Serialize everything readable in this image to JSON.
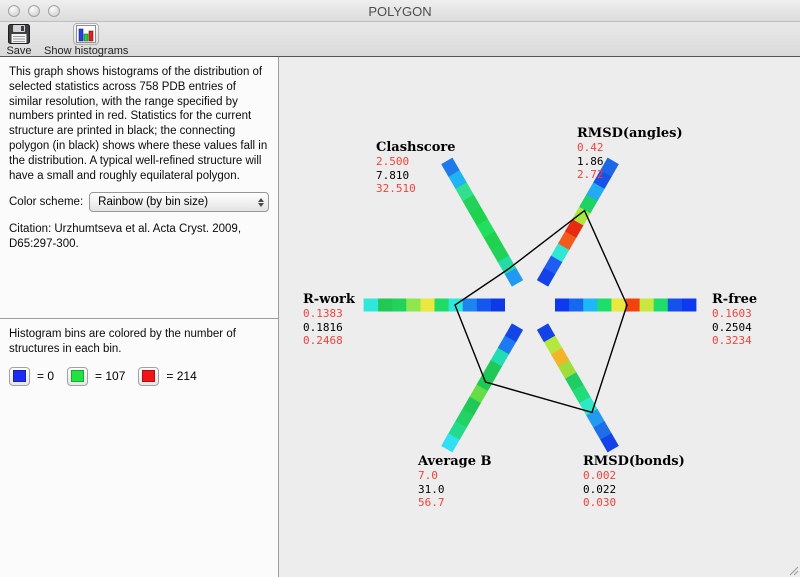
{
  "window": {
    "title": "POLYGON"
  },
  "toolbar": {
    "save_label": "Save",
    "show_histograms_label": "Show histograms",
    "save_icon": "floppy-disk-icon",
    "show_histograms_icon": "histogram-icon"
  },
  "info_panel": {
    "description": "This graph shows histograms of the distribution of selected statistics across 758 PDB entries of similar resolution, with the range specified by numbers printed in red.  Statistics for the current structure are printed in black; the connecting polygon (in black) shows where these values fall in the distribution. A typical well-refined structure will have a small and roughly equilateral polygon.",
    "color_scheme_label": "Color scheme:",
    "color_scheme_value": "Rainbow (by bin size)",
    "citation": "Citation: Urzhumtseva et al. Acta Cryst. 2009, D65:297-300."
  },
  "legend_panel": {
    "description": "Histogram bins are colored by the number of structures in each bin.",
    "bins": [
      {
        "color": "#1c2cf0",
        "label": "= 0"
      },
      {
        "color": "#21e241",
        "label": "= 107"
      },
      {
        "color": "#ee1616",
        "label": "= 214"
      }
    ]
  },
  "colors": {
    "range_text": "#f5423c",
    "current_text": "#000000",
    "polygon_stroke": "#000000",
    "chart_background": "#ededed"
  },
  "chart_data": {
    "type": "radar-histogram",
    "n_axes": 6,
    "bins_per_axis": 10,
    "legend": {
      "bin_count_min": 0,
      "bin_count_mid": 107,
      "bin_count_max": 214
    },
    "axes": [
      {
        "name": "R-free",
        "angle_deg": 0,
        "low": "0.1603",
        "current": "0.2504",
        "high": "0.3234",
        "polygon_radius": 97,
        "bin_colors": [
          "#0d3af0",
          "#1668f0",
          "#1cb8fa",
          "#1ede6a",
          "#e8e83e",
          "#f2430d",
          "#c8e83e",
          "#1ede6a",
          "#1452f0",
          "#0d3af0"
        ]
      },
      {
        "name": "RMSD(angles)",
        "angle_deg": 60,
        "low": "0.42",
        "current": "1.86",
        "high": "2.72",
        "polygon_radius": 109,
        "bin_colors": [
          "#1242e8",
          "#1e5cf2",
          "#2ee8d4",
          "#f25a1e",
          "#e82a12",
          "#aae83e",
          "#1ed266",
          "#22aaf2",
          "#1452e8",
          "#1e66e8"
        ]
      },
      {
        "name": "Clashscore",
        "angle_deg": 120,
        "low": "2.500",
        "current": "7.810",
        "high": "32.510",
        "polygon_radius": 42,
        "bin_colors": [
          "#2198f2",
          "#24dcaa",
          "#22d258",
          "#1ed24e",
          "#22e05e",
          "#1ed24e",
          "#22d25a",
          "#30e08c",
          "#22b4f2",
          "#1e7ae8"
        ]
      },
      {
        "name": "R-work",
        "angle_deg": 180,
        "low": "0.1383",
        "current": "0.1816",
        "high": "0.2468",
        "polygon_radius": 75,
        "bin_colors": [
          "#0d3ae8",
          "#1456f2",
          "#1e84f2",
          "#2ee8dc",
          "#1edc64",
          "#e8e83e",
          "#8ce84c",
          "#22d25a",
          "#20c854",
          "#2ee8dc"
        ]
      },
      {
        "name": "Average B",
        "angle_deg": 240,
        "low": "7.0",
        "current": "31.0",
        "high": "56.7",
        "polygon_radius": 89,
        "bin_colors": [
          "#1246e8",
          "#1e7af2",
          "#22dcb4",
          "#20c858",
          "#1ec854",
          "#66dc46",
          "#20c858",
          "#22d264",
          "#22dc8c",
          "#2ee0f2"
        ]
      },
      {
        "name": "RMSD(bonds)",
        "angle_deg": 300,
        "low": "0.002",
        "current": "0.022",
        "high": "0.030",
        "polygon_radius": 124,
        "bin_colors": [
          "#1242e8",
          "#b4e83e",
          "#f2b428",
          "#a0dc3c",
          "#20cd64",
          "#22dc78",
          "#2ee8c8",
          "#219af2",
          "#1e6ee8",
          "#1242e8"
        ]
      }
    ]
  }
}
